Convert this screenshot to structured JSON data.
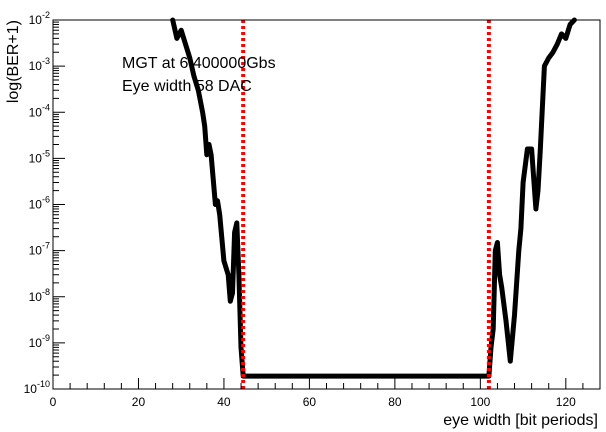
{
  "chart_data": {
    "type": "line",
    "title": "",
    "xlabel": "eye width [bit periods]",
    "ylabel": "log(BER+1)",
    "xlim": [
      0,
      128
    ],
    "ylim": [
      1e-10,
      0.01
    ],
    "y_scale": "log",
    "grid": false,
    "x_ticks": [
      0,
      20,
      40,
      60,
      80,
      100,
      120
    ],
    "x_tick_labels": [
      "0",
      "20",
      "40",
      "60",
      "80",
      "100",
      "120"
    ],
    "y_ticks": [
      1e-10,
      1e-09,
      1e-08,
      1e-07,
      1e-06,
      1e-05,
      0.0001,
      0.001,
      0.01
    ],
    "y_tick_labels": [
      {
        "base": "10",
        "exp": "-10"
      },
      {
        "base": "10",
        "exp": "-9"
      },
      {
        "base": "10",
        "exp": "-8"
      },
      {
        "base": "10",
        "exp": "-7"
      },
      {
        "base": "10",
        "exp": "-6"
      },
      {
        "base": "10",
        "exp": "-5"
      },
      {
        "base": "10",
        "exp": "-4"
      },
      {
        "base": "10",
        "exp": "-3"
      },
      {
        "base": "10",
        "exp": "-2"
      }
    ],
    "annotations": [
      "MGT at 6.400000Gbs",
      "Eye width 58 DAC"
    ],
    "series": [
      {
        "color": "#000000",
        "x": [
          28,
          29,
          30,
          31,
          32,
          33,
          34,
          35,
          35.5,
          36,
          36.5,
          37,
          38,
          38.5,
          39,
          40,
          41,
          41.5,
          42,
          42.5,
          43,
          43.5,
          44,
          44.5,
          102,
          102.5,
          103,
          103.5,
          104,
          104.5,
          105,
          106,
          107,
          108,
          109,
          109.5,
          110,
          111,
          112,
          113,
          113.5,
          114,
          115,
          116,
          117,
          118,
          119,
          120,
          121,
          122
        ],
        "y": [
          0.01,
          0.004,
          0.006,
          0.003,
          0.0015,
          0.0006,
          0.0003,
          0.0001,
          5e-05,
          1.2e-05,
          2e-05,
          1.2e-05,
          1e-06,
          1.2e-06,
          6e-07,
          6e-08,
          3e-08,
          8e-09,
          1.2e-08,
          2.5e-07,
          4e-07,
          3e-08,
          8e-10,
          1.9e-10,
          1.9e-10,
          8e-10,
          2e-09,
          1e-07,
          1.5e-07,
          3e-08,
          1.6e-08,
          3e-09,
          4e-10,
          4e-09,
          1e-07,
          3e-07,
          3e-06,
          1.6e-05,
          1.6e-05,
          8e-07,
          2e-06,
          1.4e-05,
          0.001,
          0.0015,
          0.002,
          0.003,
          0.005,
          0.004,
          0.008,
          0.01
        ]
      }
    ],
    "markers": [
      {
        "x": 44.5,
        "color": "#ff0000",
        "style": "dotted"
      },
      {
        "x": 102,
        "color": "#ff0000",
        "style": "dotted"
      }
    ]
  }
}
